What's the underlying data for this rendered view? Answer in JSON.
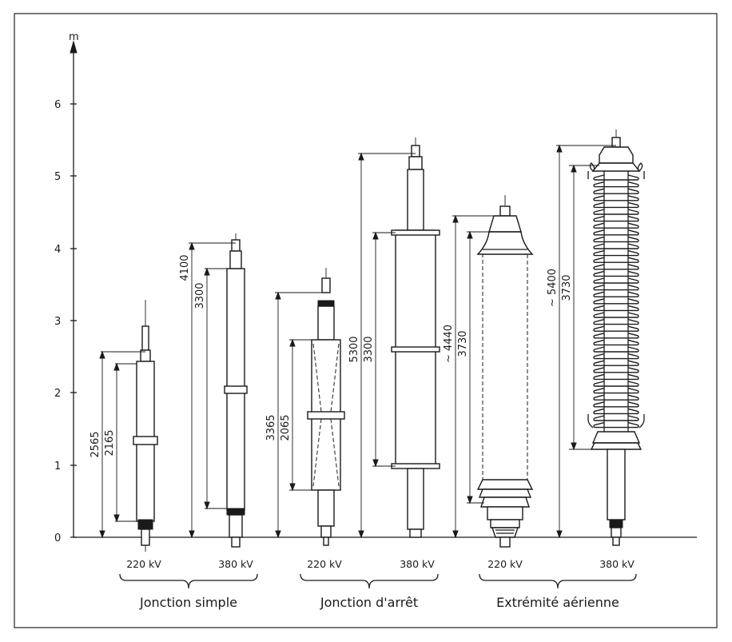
{
  "y_axis": {
    "unit": "m",
    "ticks": [
      "0",
      "1",
      "2",
      "3",
      "4",
      "5",
      "6"
    ]
  },
  "groups": [
    {
      "label": "Jonction simple",
      "items": [
        {
          "voltage": "220 kV",
          "overall": "2565",
          "inner": "2165"
        },
        {
          "voltage": "380 kV",
          "overall": "4100",
          "inner": "3300"
        }
      ]
    },
    {
      "label": "Jonction d'arrêt",
      "items": [
        {
          "voltage": "220 kV",
          "overall": "3365",
          "inner": "2065"
        },
        {
          "voltage": "380 kV",
          "overall": "5300",
          "inner": "3300"
        }
      ]
    },
    {
      "label": "Extrémité aérienne",
      "items": [
        {
          "voltage": "220 kV",
          "overall": "~ 4440",
          "inner": "3730"
        },
        {
          "voltage": "380 kV",
          "overall": "~ 5400",
          "inner": "3730"
        }
      ]
    }
  ]
}
